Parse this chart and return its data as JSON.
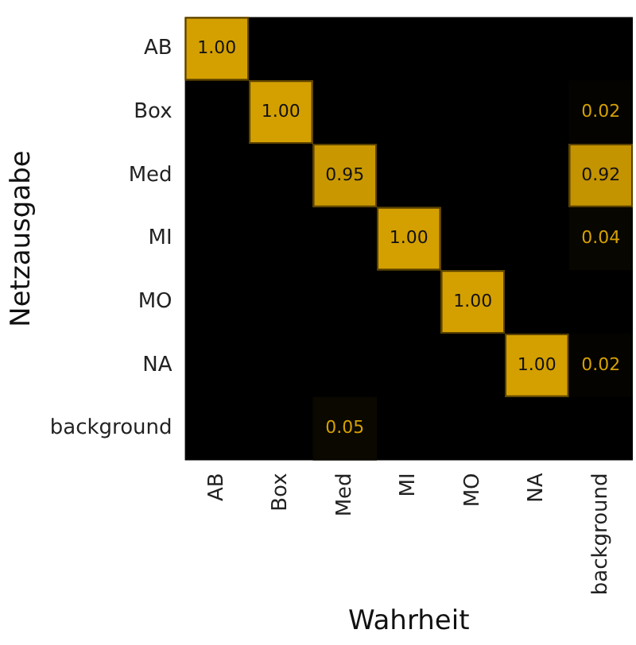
{
  "chart_data": {
    "type": "heatmap",
    "xlabel": "Wahrheit",
    "ylabel": "Netzausgabe",
    "categories": [
      "AB",
      "Box",
      "Med",
      "MI",
      "MO",
      "NA",
      "background"
    ],
    "y_categories": [
      "AB",
      "Box",
      "Med",
      "MI",
      "MO",
      "NA",
      "background"
    ],
    "cells": [
      [
        1.0,
        null,
        null,
        null,
        null,
        null,
        null
      ],
      [
        null,
        1.0,
        null,
        null,
        null,
        null,
        0.02
      ],
      [
        null,
        null,
        0.95,
        null,
        null,
        null,
        0.92
      ],
      [
        null,
        null,
        null,
        1.0,
        null,
        null,
        0.04
      ],
      [
        null,
        null,
        null,
        null,
        1.0,
        null,
        null
      ],
      [
        null,
        null,
        null,
        null,
        null,
        1.0,
        0.02
      ],
      [
        null,
        null,
        0.05,
        null,
        null,
        null,
        null
      ]
    ],
    "cell_labels": [
      [
        "1.00",
        null,
        null,
        null,
        null,
        null,
        null
      ],
      [
        null,
        "1.00",
        null,
        null,
        null,
        null,
        "0.02"
      ],
      [
        null,
        null,
        "0.95",
        null,
        null,
        null,
        "0.92"
      ],
      [
        null,
        null,
        null,
        "1.00",
        null,
        null,
        "0.04"
      ],
      [
        null,
        null,
        null,
        null,
        "1.00",
        null,
        null
      ],
      [
        null,
        null,
        null,
        null,
        null,
        "1.00",
        "0.02"
      ],
      [
        null,
        null,
        "0.05",
        null,
        null,
        null,
        null
      ]
    ],
    "grid": false,
    "legend": false
  }
}
